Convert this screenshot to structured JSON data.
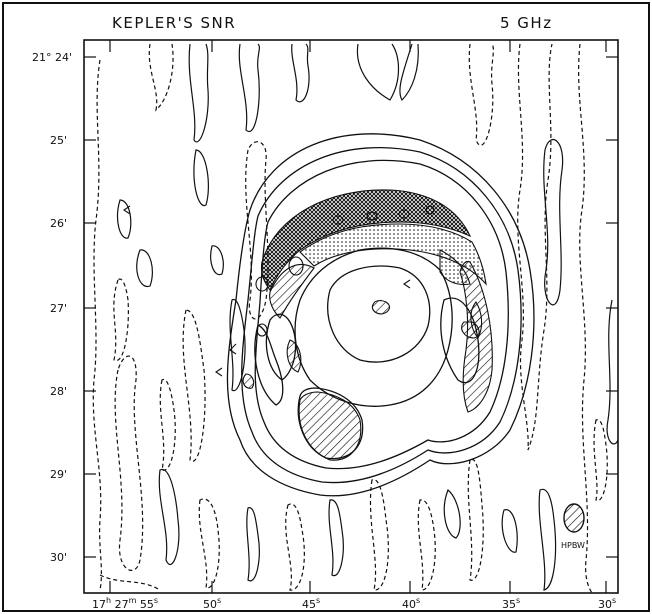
{
  "figure": {
    "title": "KEPLER'S SNR",
    "frequency": "5 GHz",
    "beam_label": "HPBW",
    "dec_ticks": [
      {
        "deg": "21°",
        "min": "24'"
      },
      {
        "deg": "",
        "min": "25'"
      },
      {
        "deg": "",
        "min": "26'"
      },
      {
        "deg": "",
        "min": "27'"
      },
      {
        "deg": "",
        "min": "28'"
      },
      {
        "deg": "",
        "min": "29'"
      },
      {
        "deg": "",
        "min": "30'"
      }
    ],
    "ra_ticks": [
      {
        "h": "17",
        "m": "27",
        "s": "55"
      },
      {
        "s": "50"
      },
      {
        "s": "45"
      },
      {
        "s": "40"
      },
      {
        "s": "35"
      },
      {
        "s": "30"
      }
    ],
    "units": {
      "h": "h",
      "m": "m",
      "s": "s"
    },
    "colors": {
      "ink": "#111111",
      "background": "#ffffff"
    }
  }
}
